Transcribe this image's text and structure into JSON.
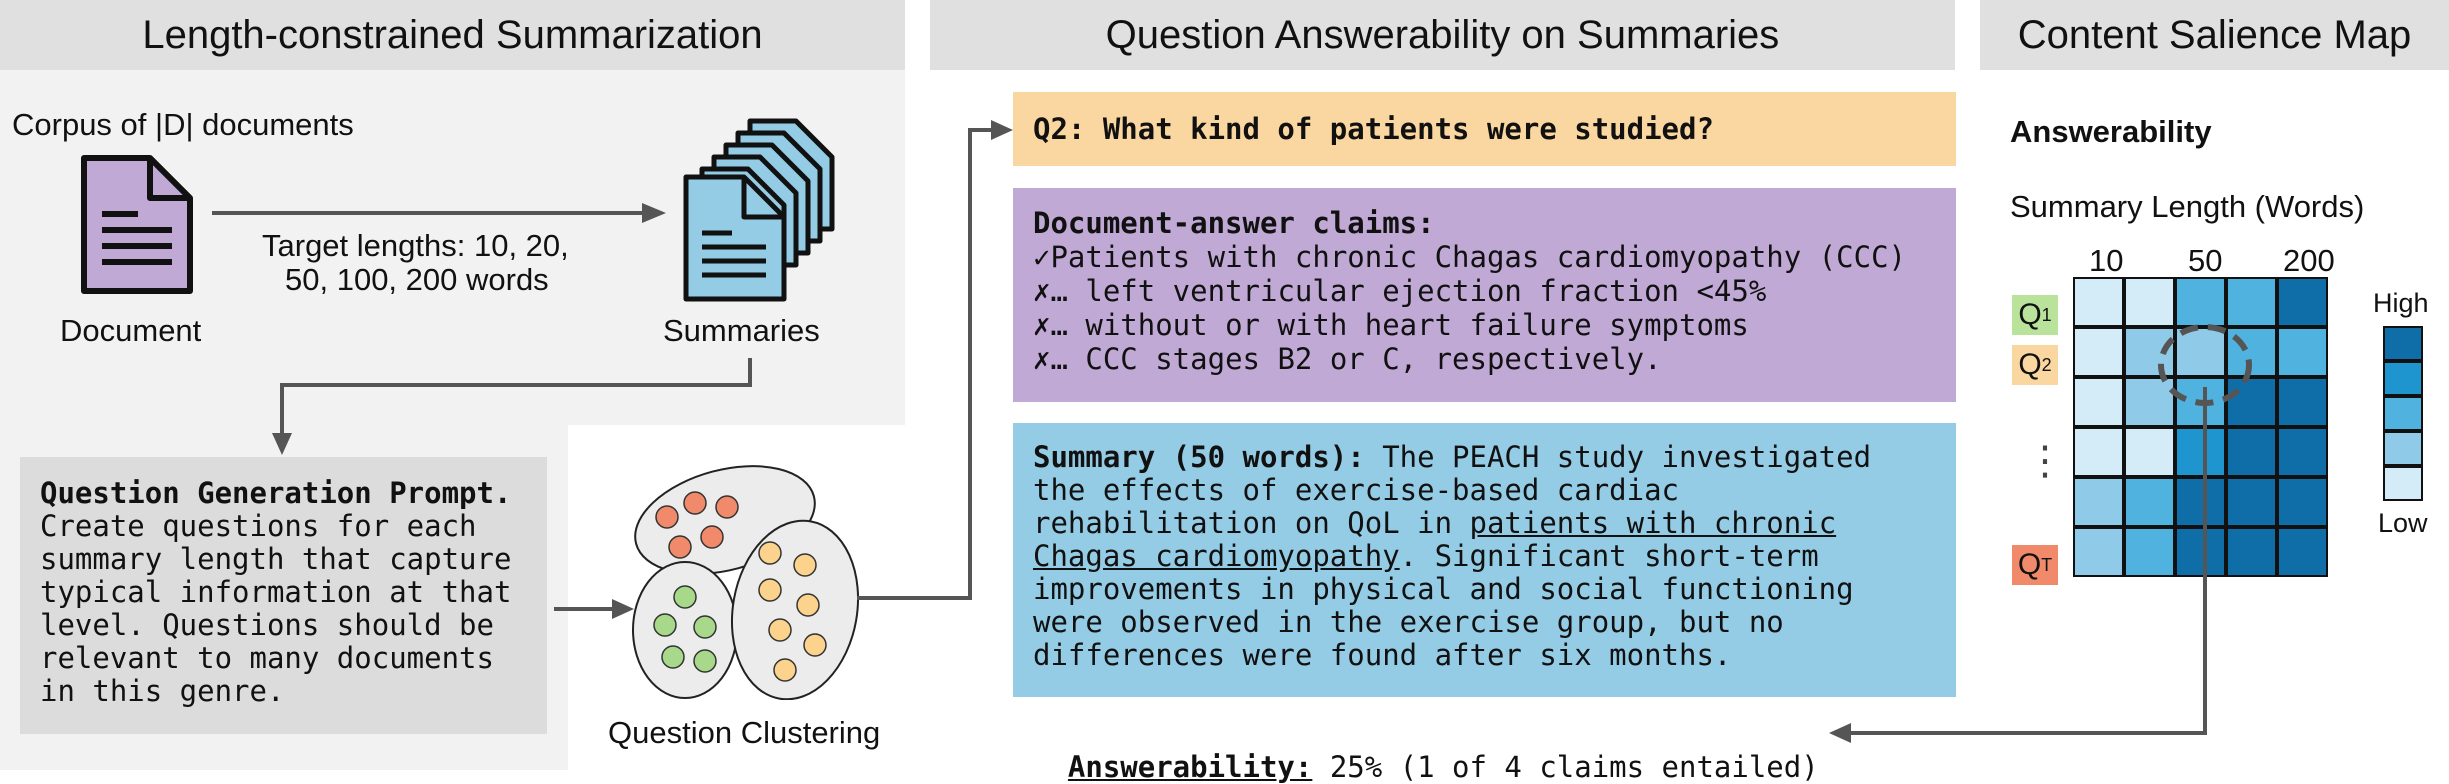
{
  "panel1": {
    "title": "Length-constrained Summarization",
    "corpus_label": "Corpus of |D| documents",
    "document_label": "Document",
    "summaries_label": "Summaries",
    "target_lengths_line1": "Target lengths: 10, 20,",
    "target_lengths_line2": "50, 100, 200 words",
    "doc_color": "#c1a9d6",
    "summary_color": "#94cbe5"
  },
  "prompt": {
    "title": "Question Generation Prompt.",
    "lines": [
      "Create questions for each",
      "summary length that capture",
      "typical information at that",
      "level. Questions should be",
      "relevant to many documents",
      "in this genre."
    ]
  },
  "clustering": {
    "label": "Question Clustering",
    "colors": [
      "#f08a6a",
      "#a8d98a",
      "#fbd38c"
    ]
  },
  "panel2": {
    "title": "Question Answerability on Summaries",
    "question": "Q2: What kind of patients were studied?",
    "claims_title": "Document-answer claims:",
    "claims": [
      {
        "mark": "✓",
        "text": "Patients with chronic Chagas cardiomyopathy (CCC)"
      },
      {
        "mark": "✗",
        "text": "… left ventricular ejection fraction <45%"
      },
      {
        "mark": "✗",
        "text": "… without or with heart failure symptoms"
      },
      {
        "mark": "✗",
        "text": "… CCC stages B2 or C, respectively."
      }
    ],
    "summary_title": "Summary (50 words):",
    "summary_line1_rest": " The PEACH study investigated",
    "summary_line2": "the effects of exercise-based cardiac",
    "summary_line3_pre": "rehabilitation on QoL in ",
    "summary_line3_underlined": "patients with chronic",
    "summary_line4_underlined": "Chagas cardiomyopathy",
    "summary_line4_rest": ". Significant short-term",
    "summary_line5": "improvements in physical and social functioning",
    "summary_line6": "were observed in the exercise group, but no",
    "summary_line7": "differences were found after six months.",
    "answerability_label": "Answerability:",
    "answerability_value": " 25% (1 of 4 claims entailed)"
  },
  "panel3": {
    "title": "Content Salience Map",
    "answerability_heading": "Answerability",
    "axis_label": "Summary Length (Words)",
    "col_labels": [
      "10",
      "50",
      "200"
    ],
    "row_labels": [
      {
        "main": "Q",
        "sub": "1",
        "color": "#b9e39b"
      },
      {
        "main": "Q",
        "sub": "2",
        "color": "#fad7a0"
      },
      {
        "main": "Q",
        "sub": "T",
        "color": "#f08a6a"
      }
    ],
    "ellipsis": "⋮",
    "legend_high": "High",
    "legend_low": "Low",
    "legend_colors": [
      "#0f6ea8",
      "#1f95cf",
      "#50b2df",
      "#8fcbe8",
      "#d4ecf7"
    ],
    "grid_values": [
      [
        0.05,
        0.15,
        0.45,
        0.6,
        0.95
      ],
      [
        0.15,
        0.3,
        0.35,
        0.6,
        0.55
      ],
      [
        0.15,
        0.3,
        0.6,
        0.85,
        0.95
      ],
      [
        0.05,
        0.1,
        0.7,
        0.85,
        0.95
      ],
      [
        0.35,
        0.55,
        0.8,
        0.95,
        0.85
      ],
      [
        0.3,
        0.55,
        0.8,
        0.85,
        0.95
      ]
    ]
  }
}
